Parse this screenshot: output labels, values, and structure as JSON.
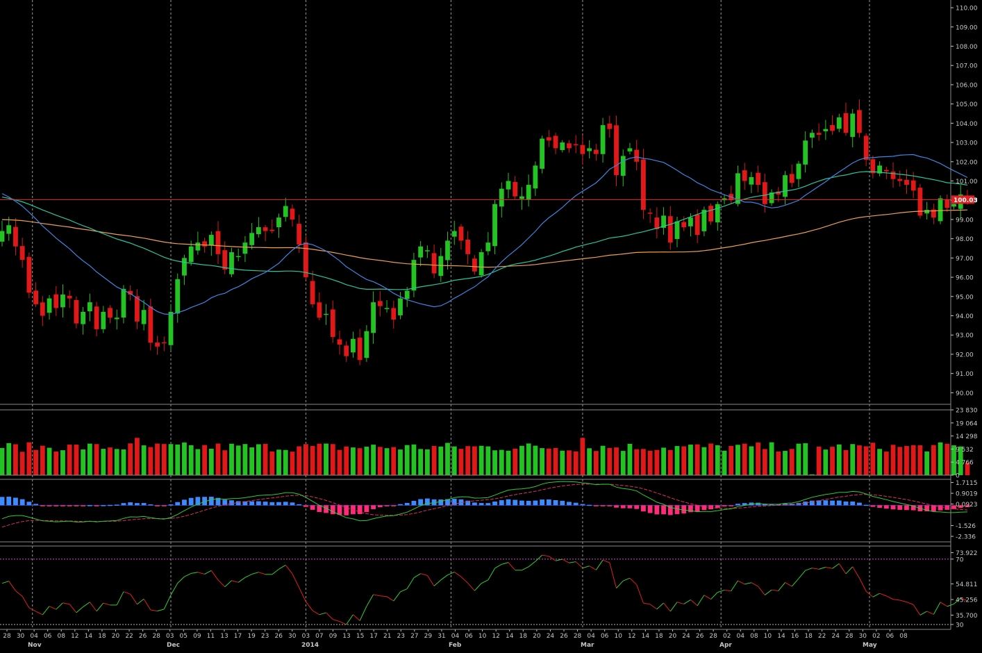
{
  "colors": {
    "background": "#000000",
    "axis": "#c8c8c8",
    "grid": "#9a9a9a",
    "up": "#22c322",
    "down": "#e01818",
    "sma_short": "#3f86e0",
    "sma_mid": "#27c7a0",
    "sma_long": "#f0a050",
    "last_price_line": "#e03030",
    "last_price_tag": "#e02020",
    "macd_pos": "#3c8cff",
    "macd_neg": "#ff2a7a",
    "macd_line": "#2ecc2e",
    "macd_signal": "#e03060",
    "rsi_up": "#30d030",
    "rsi_down": "#e02020",
    "rsi_ref": "#d050d0"
  },
  "chart_data": [
    {
      "type": "candlestick",
      "panel": "price",
      "ylim": [
        89.4,
        110.4
      ],
      "yticks": [
        "110.00",
        "109.00",
        "108.00",
        "107.00",
        "106.00",
        "105.00",
        "104.00",
        "103.00",
        "102.00",
        "101.00",
        "100.00",
        "99.00",
        "98.00",
        "97.00",
        "96.00",
        "95.00",
        "94.00",
        "93.00",
        "92.00",
        "91.00",
        "90.00"
      ],
      "last_price": "100.03",
      "closes": [
        98.4,
        98.7,
        97.6,
        96.9,
        95.2,
        94.6,
        94.0,
        94.9,
        94.4,
        95.1,
        94.9,
        93.6,
        94.2,
        94.7,
        93.3,
        94.2,
        93.9,
        93.9,
        95.4,
        95.1,
        93.7,
        94.3,
        92.6,
        92.4,
        92.6,
        94.2,
        95.9,
        97.0,
        97.6,
        97.8,
        97.6,
        98.2,
        97.2,
        96.4,
        97.3,
        97.1,
        97.8,
        98.3,
        98.6,
        98.4,
        98.4,
        99.1,
        99.7,
        99.0,
        97.7,
        96.0,
        94.6,
        93.9,
        94.1,
        92.9,
        92.5,
        91.9,
        92.8,
        91.7,
        93.2,
        94.7,
        94.5,
        94.4,
        93.8,
        94.9,
        95.3,
        96.9,
        97.6,
        97.4,
        96.2,
        97.1,
        97.9,
        98.4,
        97.9,
        97.2,
        96.3,
        97.3,
        97.8,
        99.8,
        100.6,
        101.0,
        100.2,
        100.2,
        100.8,
        101.8,
        103.2,
        103.1,
        102.7,
        103.0,
        102.7,
        102.9,
        102.4,
        102.7,
        102.4,
        103.9,
        103.7,
        101.3,
        102.3,
        102.7,
        102.0,
        99.5,
        99.3,
        98.5,
        99.2,
        97.8,
        98.9,
        98.6,
        99.1,
        98.2,
        99.5,
        98.9,
        99.8,
        100.1,
        100.0,
        101.4,
        101.0,
        101.2,
        100.8,
        99.8,
        100.4,
        100.3,
        101.3,
        100.9,
        101.9,
        103.1,
        103.5,
        103.4,
        103.7,
        103.6,
        104.3,
        103.5,
        104.5,
        103.5,
        102.1,
        101.4,
        101.8,
        101.5,
        101.1,
        101.0,
        100.8,
        100.5,
        99.2,
        99.5,
        99.1,
        100.1,
        99.6,
        99.8,
        100.3,
        100.03
      ],
      "volume_ylim": [
        0,
        23830
      ],
      "volume_ticks": [
        "23 830",
        "19 064",
        "14 298",
        "9 532",
        "4 766",
        "0"
      ],
      "macd_ylim": [
        -2.75,
        1.95
      ],
      "macd_ticks": [
        "1.7115",
        "0.9019",
        "0.0923",
        "-1.526",
        "-2.336"
      ],
      "rsi_ylim": [
        27,
        78
      ],
      "rsi_ticks": [
        "73.922",
        "70",
        "54.811",
        "45.256",
        "35.700",
        "30"
      ],
      "x_day_labels": [
        "28",
        "30",
        "04",
        "06",
        "08",
        "12",
        "14",
        "18",
        "20",
        "22",
        "26",
        "28",
        "03",
        "05",
        "09",
        "11",
        "13",
        "17",
        "19",
        "23",
        "26",
        "30",
        "03",
        "07",
        "09",
        "13",
        "15",
        "17",
        "21",
        "23",
        "27",
        "29",
        "31",
        "04",
        "06",
        "10",
        "12",
        "14",
        "18",
        "20",
        "24",
        "26",
        "28",
        "04",
        "06",
        "10",
        "12",
        "14",
        "18",
        "20",
        "24",
        "26",
        "28",
        "02",
        "04",
        "08",
        "10",
        "14",
        "16",
        "18",
        "22",
        "24",
        "28",
        "30",
        "02",
        "06",
        "08"
      ],
      "x_month_labels": [
        "Nov",
        "Dec",
        "2014",
        "Feb",
        "Mar",
        "Apr",
        "May"
      ]
    }
  ]
}
